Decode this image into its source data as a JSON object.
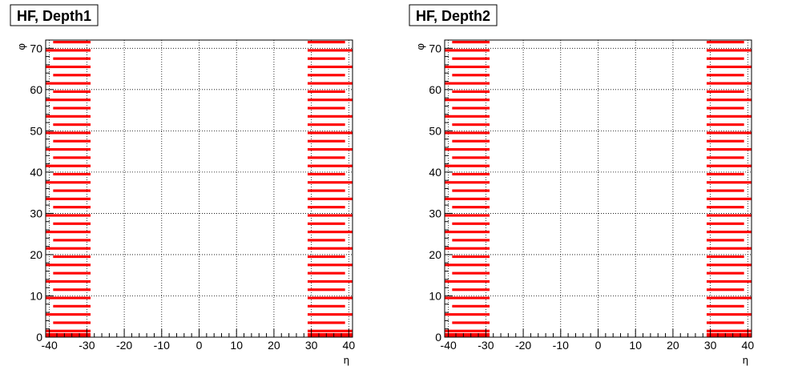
{
  "chart_data": [
    {
      "type": "heatmap",
      "title": "HF, Depth1",
      "xlabel": "η",
      "ylabel": "φ",
      "xlim": [
        -41,
        41
      ],
      "ylim": [
        0,
        72
      ],
      "xticks": [
        -40,
        -30,
        -20,
        -10,
        0,
        10,
        20,
        30,
        40
      ],
      "yticks": [
        0,
        10,
        20,
        30,
        40,
        50,
        60,
        70
      ],
      "grid": true,
      "cell_color": "#ff0000",
      "filled_eta_ranges": [
        [
          -41,
          -29
        ],
        [
          29,
          41
        ]
      ],
      "full_width_phi_rows": [
        1,
        3,
        5,
        7,
        9,
        11,
        13,
        15,
        17,
        19,
        21,
        23,
        25,
        27,
        29,
        31,
        33,
        35,
        37,
        39,
        41,
        43,
        45,
        47,
        49,
        51,
        53,
        55,
        57,
        59,
        61,
        63,
        65,
        67,
        69,
        71
      ],
      "partial_phi_rows": [
        3,
        7,
        11,
        15,
        19,
        23,
        27,
        31,
        35,
        39,
        43,
        47,
        51,
        55,
        59,
        63,
        67,
        71
      ],
      "partial_eta_exclusions": [
        [
          -41,
          -39
        ],
        [
          39,
          41
        ]
      ]
    },
    {
      "type": "heatmap",
      "title": "HF, Depth2",
      "xlabel": "η",
      "ylabel": "φ",
      "xlim": [
        -41,
        41
      ],
      "ylim": [
        0,
        72
      ],
      "xticks": [
        -40,
        -30,
        -20,
        -10,
        0,
        10,
        20,
        30,
        40
      ],
      "yticks": [
        0,
        10,
        20,
        30,
        40,
        50,
        60,
        70
      ],
      "grid": true,
      "cell_color": "#ff0000",
      "filled_eta_ranges": [
        [
          -41,
          -29
        ],
        [
          29,
          41
        ]
      ],
      "full_width_phi_rows": [
        1,
        3,
        5,
        7,
        9,
        11,
        13,
        15,
        17,
        19,
        21,
        23,
        25,
        27,
        29,
        31,
        33,
        35,
        37,
        39,
        41,
        43,
        45,
        47,
        49,
        51,
        53,
        55,
        57,
        59,
        61,
        63,
        65,
        67,
        69,
        71
      ],
      "partial_phi_rows": [
        3,
        7,
        11,
        15,
        19,
        23,
        27,
        31,
        35,
        39,
        43,
        47,
        51,
        55,
        59,
        63,
        67,
        71
      ],
      "partial_eta_exclusions": [
        [
          -41,
          -39
        ],
        [
          39,
          41
        ]
      ]
    }
  ]
}
